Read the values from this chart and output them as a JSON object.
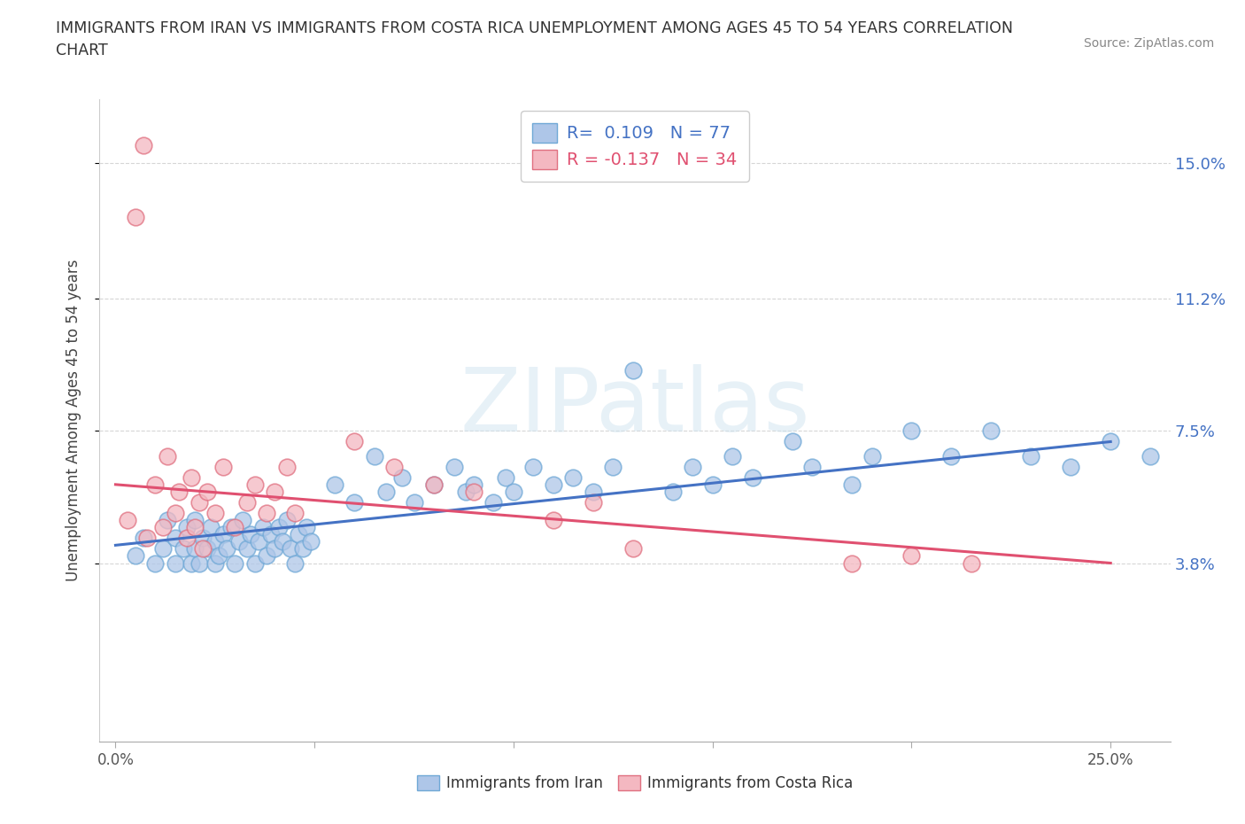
{
  "title": "IMMIGRANTS FROM IRAN VS IMMIGRANTS FROM COSTA RICA UNEMPLOYMENT AMONG AGES 45 TO 54 YEARS CORRELATION\nCHART",
  "source_text": "Source: ZipAtlas.com",
  "ylabel": "Unemployment Among Ages 45 to 54 years",
  "x_tick_positions": [
    0.0,
    0.05,
    0.1,
    0.15,
    0.2,
    0.25
  ],
  "x_tick_labels": [
    "0.0%",
    "",
    "",
    "",
    "",
    "25.0%"
  ],
  "y_ticks": [
    0.038,
    0.075,
    0.112,
    0.15
  ],
  "y_tick_labels": [
    "3.8%",
    "7.5%",
    "11.2%",
    "15.0%"
  ],
  "xlim": [
    -0.004,
    0.265
  ],
  "ylim": [
    -0.012,
    0.168
  ],
  "iran_color": "#aec6e8",
  "iran_edge_color": "#6fa8d6",
  "costa_rica_color": "#f4b8c1",
  "costa_rica_edge_color": "#e07080",
  "iran_line_color": "#4472c4",
  "costa_rica_line_color": "#e05070",
  "iran_R": 0.109,
  "iran_N": 77,
  "costa_rica_R": -0.137,
  "costa_rica_N": 34,
  "watermark_text": "ZIPatlas",
  "background_color": "#ffffff",
  "grid_color": "#cccccc",
  "iran_x": [
    0.005,
    0.007,
    0.01,
    0.012,
    0.013,
    0.015,
    0.015,
    0.017,
    0.018,
    0.019,
    0.02,
    0.02,
    0.021,
    0.022,
    0.023,
    0.024,
    0.025,
    0.025,
    0.026,
    0.027,
    0.028,
    0.029,
    0.03,
    0.031,
    0.032,
    0.033,
    0.034,
    0.035,
    0.036,
    0.037,
    0.038,
    0.039,
    0.04,
    0.041,
    0.042,
    0.043,
    0.044,
    0.045,
    0.046,
    0.047,
    0.048,
    0.049,
    0.055,
    0.06,
    0.065,
    0.068,
    0.072,
    0.075,
    0.08,
    0.085,
    0.088,
    0.09,
    0.095,
    0.098,
    0.1,
    0.105,
    0.11,
    0.115,
    0.12,
    0.125,
    0.13,
    0.14,
    0.145,
    0.15,
    0.155,
    0.16,
    0.17,
    0.175,
    0.185,
    0.19,
    0.2,
    0.21,
    0.22,
    0.23,
    0.24,
    0.25,
    0.26
  ],
  "iran_y": [
    0.04,
    0.045,
    0.038,
    0.042,
    0.05,
    0.038,
    0.045,
    0.042,
    0.048,
    0.038,
    0.042,
    0.05,
    0.038,
    0.045,
    0.042,
    0.048,
    0.038,
    0.044,
    0.04,
    0.046,
    0.042,
    0.048,
    0.038,
    0.044,
    0.05,
    0.042,
    0.046,
    0.038,
    0.044,
    0.048,
    0.04,
    0.046,
    0.042,
    0.048,
    0.044,
    0.05,
    0.042,
    0.038,
    0.046,
    0.042,
    0.048,
    0.044,
    0.06,
    0.055,
    0.068,
    0.058,
    0.062,
    0.055,
    0.06,
    0.065,
    0.058,
    0.06,
    0.055,
    0.062,
    0.058,
    0.065,
    0.06,
    0.062,
    0.058,
    0.065,
    0.092,
    0.058,
    0.065,
    0.06,
    0.068,
    0.062,
    0.072,
    0.065,
    0.06,
    0.068,
    0.075,
    0.068,
    0.075,
    0.068,
    0.065,
    0.072,
    0.068
  ],
  "costa_rica_x": [
    0.003,
    0.005,
    0.007,
    0.008,
    0.01,
    0.012,
    0.013,
    0.015,
    0.016,
    0.018,
    0.019,
    0.02,
    0.021,
    0.022,
    0.023,
    0.025,
    0.027,
    0.03,
    0.033,
    0.035,
    0.038,
    0.04,
    0.043,
    0.045,
    0.06,
    0.07,
    0.08,
    0.09,
    0.11,
    0.12,
    0.13,
    0.185,
    0.2,
    0.215
  ],
  "costa_rica_y": [
    0.05,
    0.135,
    0.155,
    0.045,
    0.06,
    0.048,
    0.068,
    0.052,
    0.058,
    0.045,
    0.062,
    0.048,
    0.055,
    0.042,
    0.058,
    0.052,
    0.065,
    0.048,
    0.055,
    0.06,
    0.052,
    0.058,
    0.065,
    0.052,
    0.072,
    0.065,
    0.06,
    0.058,
    0.05,
    0.055,
    0.042,
    0.038,
    0.04,
    0.038
  ]
}
